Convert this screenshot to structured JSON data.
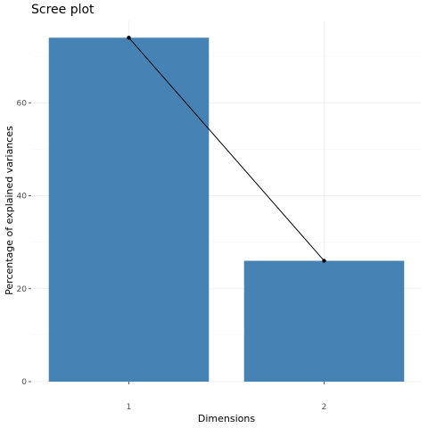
{
  "chart_data": {
    "type": "bar",
    "title": "Scree plot",
    "xlabel": "Dimensions",
    "ylabel": "Percentage of explained variances",
    "categories": [
      "1",
      "2"
    ],
    "values": [
      74.0,
      26.0
    ],
    "line_overlay": true,
    "ylim": [
      0,
      77.7
    ],
    "yticks": [
      0,
      20,
      40,
      60
    ],
    "ytick_labels": [
      "0",
      "20",
      "40",
      "60"
    ],
    "grid": true,
    "legend": "none",
    "colors": {
      "bar": "#4682b4",
      "line": "#000000",
      "point": "#000000"
    }
  }
}
